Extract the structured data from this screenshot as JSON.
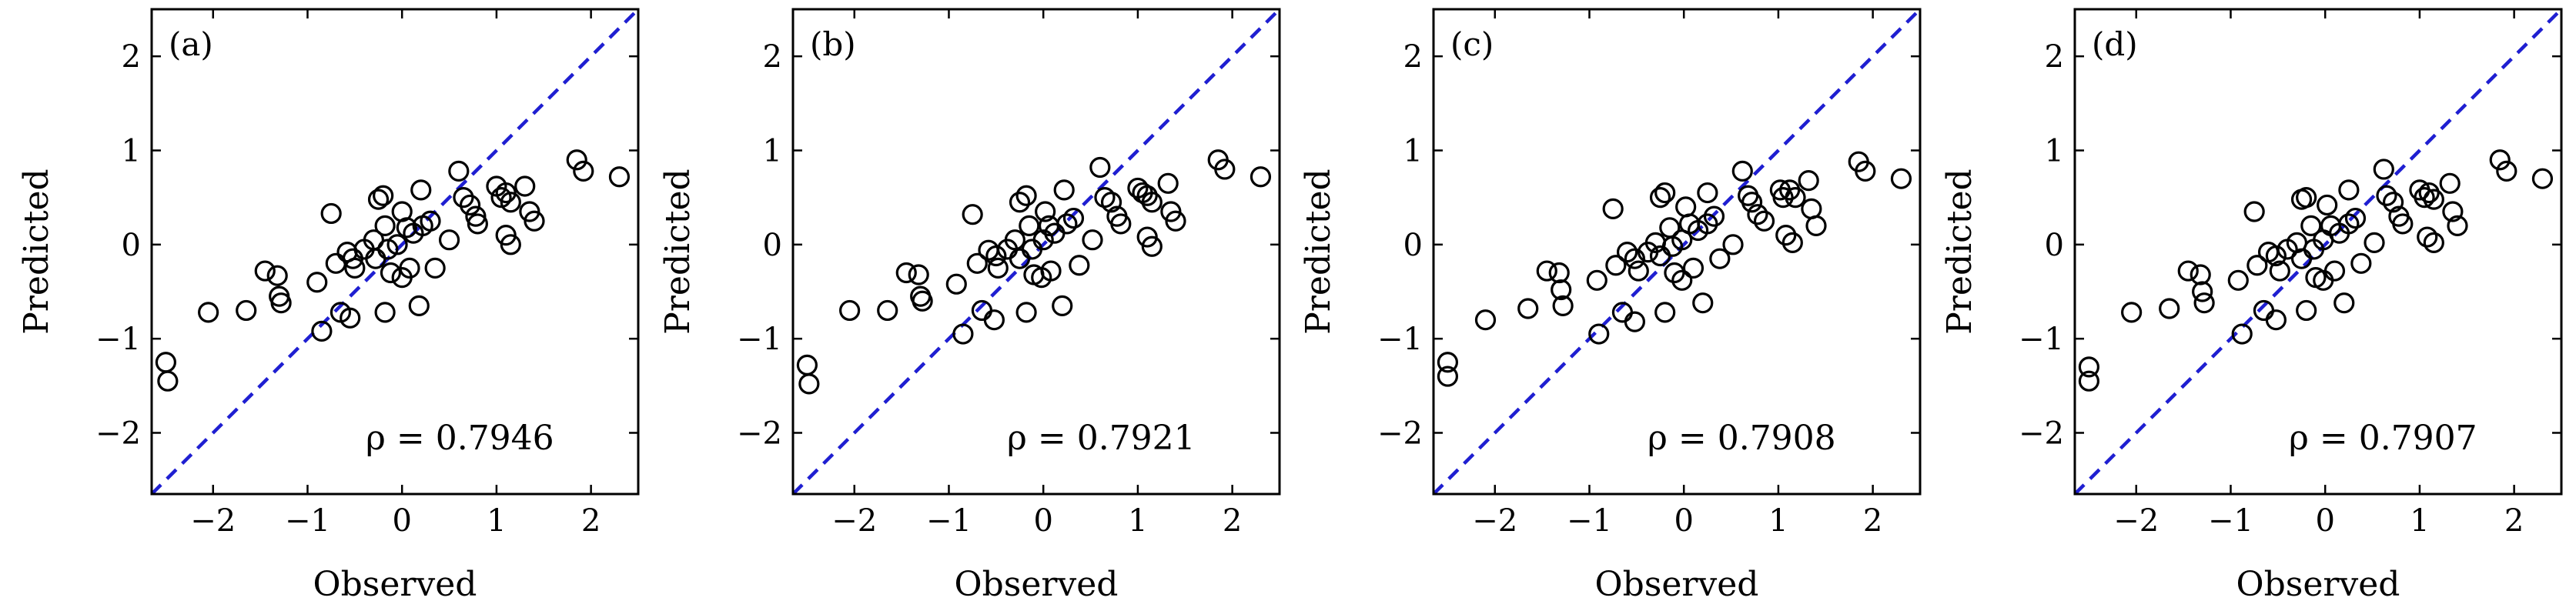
{
  "chart_data": [
    {
      "type": "scatter",
      "panel_label": "(a)",
      "annotation": "ρ = 0.7946",
      "xlabel": "Observed",
      "ylabel": "Predicted",
      "xlim": [
        -2.65,
        2.5
      ],
      "ylim": [
        -2.65,
        2.5
      ],
      "xticks": [
        -2,
        -1,
        0,
        1,
        2
      ],
      "yticks": [
        -2,
        -1,
        0,
        1,
        2
      ],
      "reference_line": "y = x (dashed, blue)",
      "colors": {
        "marker": "#000000",
        "line": "#1f1fd1"
      },
      "points": [
        {
          "x": -2.5,
          "y": -1.25
        },
        {
          "x": -2.48,
          "y": -1.45
        },
        {
          "x": -2.05,
          "y": -0.72
        },
        {
          "x": -1.65,
          "y": -0.7
        },
        {
          "x": -1.45,
          "y": -0.28
        },
        {
          "x": -1.32,
          "y": -0.33
        },
        {
          "x": -1.3,
          "y": -0.55
        },
        {
          "x": -1.28,
          "y": -0.62
        },
        {
          "x": -0.85,
          "y": -0.92
        },
        {
          "x": -0.9,
          "y": -0.4
        },
        {
          "x": -0.75,
          "y": 0.33
        },
        {
          "x": -0.65,
          "y": -0.72
        },
        {
          "x": -0.55,
          "y": -0.78
        },
        {
          "x": -0.7,
          "y": -0.2
        },
        {
          "x": -0.58,
          "y": -0.08
        },
        {
          "x": -0.52,
          "y": -0.15
        },
        {
          "x": -0.5,
          "y": -0.25
        },
        {
          "x": -0.4,
          "y": -0.05
        },
        {
          "x": -0.3,
          "y": 0.05
        },
        {
          "x": -0.28,
          "y": -0.15
        },
        {
          "x": -0.25,
          "y": 0.48
        },
        {
          "x": -0.2,
          "y": 0.52
        },
        {
          "x": -0.18,
          "y": 0.2
        },
        {
          "x": -0.15,
          "y": -0.05
        },
        {
          "x": -0.12,
          "y": -0.3
        },
        {
          "x": -0.18,
          "y": -0.72
        },
        {
          "x": -0.05,
          "y": 0.0
        },
        {
          "x": 0.0,
          "y": 0.35
        },
        {
          "x": 0.05,
          "y": 0.18
        },
        {
          "x": 0.08,
          "y": -0.25
        },
        {
          "x": 0.0,
          "y": -0.35
        },
        {
          "x": 0.12,
          "y": 0.12
        },
        {
          "x": 0.2,
          "y": 0.58
        },
        {
          "x": 0.22,
          "y": 0.2
        },
        {
          "x": 0.3,
          "y": 0.25
        },
        {
          "x": 0.35,
          "y": -0.25
        },
        {
          "x": 0.18,
          "y": -0.65
        },
        {
          "x": 0.5,
          "y": 0.05
        },
        {
          "x": 0.6,
          "y": 0.78
        },
        {
          "x": 0.65,
          "y": 0.5
        },
        {
          "x": 0.72,
          "y": 0.42
        },
        {
          "x": 0.78,
          "y": 0.3
        },
        {
          "x": 0.8,
          "y": 0.22
        },
        {
          "x": 1.0,
          "y": 0.62
        },
        {
          "x": 1.05,
          "y": 0.5
        },
        {
          "x": 1.1,
          "y": 0.55
        },
        {
          "x": 1.15,
          "y": 0.45
        },
        {
          "x": 1.1,
          "y": 0.1
        },
        {
          "x": 1.15,
          "y": 0.0
        },
        {
          "x": 1.3,
          "y": 0.62
        },
        {
          "x": 1.35,
          "y": 0.35
        },
        {
          "x": 1.4,
          "y": 0.25
        },
        {
          "x": 1.85,
          "y": 0.9
        },
        {
          "x": 1.92,
          "y": 0.78
        },
        {
          "x": 2.3,
          "y": 0.72
        }
      ]
    },
    {
      "type": "scatter",
      "panel_label": "(b)",
      "annotation": "ρ = 0.7921",
      "xlabel": "Observed",
      "ylabel": "Predicted",
      "xlim": [
        -2.65,
        2.5
      ],
      "ylim": [
        -2.65,
        2.5
      ],
      "xticks": [
        -2,
        -1,
        0,
        1,
        2
      ],
      "yticks": [
        -2,
        -1,
        0,
        1,
        2
      ],
      "reference_line": "y = x (dashed, blue)",
      "colors": {
        "marker": "#000000",
        "line": "#1f1fd1"
      },
      "points": [
        {
          "x": -2.5,
          "y": -1.28
        },
        {
          "x": -2.48,
          "y": -1.48
        },
        {
          "x": -2.05,
          "y": -0.7
        },
        {
          "x": -1.65,
          "y": -0.7
        },
        {
          "x": -1.45,
          "y": -0.3
        },
        {
          "x": -1.32,
          "y": -0.32
        },
        {
          "x": -1.3,
          "y": -0.55
        },
        {
          "x": -1.28,
          "y": -0.6
        },
        {
          "x": -0.85,
          "y": -0.95
        },
        {
          "x": -0.92,
          "y": -0.42
        },
        {
          "x": -0.75,
          "y": 0.32
        },
        {
          "x": -0.65,
          "y": -0.7
        },
        {
          "x": -0.52,
          "y": -0.8
        },
        {
          "x": -0.7,
          "y": -0.2
        },
        {
          "x": -0.58,
          "y": -0.06
        },
        {
          "x": -0.5,
          "y": -0.12
        },
        {
          "x": -0.48,
          "y": -0.25
        },
        {
          "x": -0.38,
          "y": -0.05
        },
        {
          "x": -0.3,
          "y": 0.05
        },
        {
          "x": -0.25,
          "y": -0.15
        },
        {
          "x": -0.25,
          "y": 0.45
        },
        {
          "x": -0.18,
          "y": 0.52
        },
        {
          "x": -0.15,
          "y": 0.2
        },
        {
          "x": -0.12,
          "y": -0.05
        },
        {
          "x": -0.1,
          "y": -0.32
        },
        {
          "x": -0.18,
          "y": -0.72
        },
        {
          "x": 0.0,
          "y": 0.05
        },
        {
          "x": 0.02,
          "y": 0.35
        },
        {
          "x": 0.06,
          "y": 0.2
        },
        {
          "x": 0.08,
          "y": -0.28
        },
        {
          "x": -0.02,
          "y": -0.35
        },
        {
          "x": 0.12,
          "y": 0.12
        },
        {
          "x": 0.22,
          "y": 0.58
        },
        {
          "x": 0.25,
          "y": 0.22
        },
        {
          "x": 0.32,
          "y": 0.28
        },
        {
          "x": 0.38,
          "y": -0.22
        },
        {
          "x": 0.2,
          "y": -0.65
        },
        {
          "x": 0.52,
          "y": 0.05
        },
        {
          "x": 0.6,
          "y": 0.82
        },
        {
          "x": 0.65,
          "y": 0.5
        },
        {
          "x": 0.72,
          "y": 0.45
        },
        {
          "x": 0.78,
          "y": 0.3
        },
        {
          "x": 0.82,
          "y": 0.22
        },
        {
          "x": 1.0,
          "y": 0.6
        },
        {
          "x": 1.05,
          "y": 0.55
        },
        {
          "x": 1.1,
          "y": 0.52
        },
        {
          "x": 1.15,
          "y": 0.45
        },
        {
          "x": 1.1,
          "y": 0.08
        },
        {
          "x": 1.15,
          "y": -0.02
        },
        {
          "x": 1.32,
          "y": 0.65
        },
        {
          "x": 1.35,
          "y": 0.35
        },
        {
          "x": 1.4,
          "y": 0.25
        },
        {
          "x": 1.85,
          "y": 0.9
        },
        {
          "x": 1.92,
          "y": 0.8
        },
        {
          "x": 2.3,
          "y": 0.72
        }
      ]
    },
    {
      "type": "scatter",
      "panel_label": "(c)",
      "annotation": "ρ = 0.7908",
      "xlabel": "Observed",
      "ylabel": "Predicted",
      "xlim": [
        -2.65,
        2.5
      ],
      "ylim": [
        -2.65,
        2.5
      ],
      "xticks": [
        -2,
        -1,
        0,
        1,
        2
      ],
      "yticks": [
        -2,
        -1,
        0,
        1,
        2
      ],
      "reference_line": "y = x (dashed, blue)",
      "colors": {
        "marker": "#000000",
        "line": "#1f1fd1"
      },
      "points": [
        {
          "x": -2.5,
          "y": -1.25
        },
        {
          "x": -2.5,
          "y": -1.4
        },
        {
          "x": -2.1,
          "y": -0.8
        },
        {
          "x": -1.65,
          "y": -0.68
        },
        {
          "x": -1.45,
          "y": -0.28
        },
        {
          "x": -1.32,
          "y": -0.3
        },
        {
          "x": -1.3,
          "y": -0.48
        },
        {
          "x": -1.28,
          "y": -0.65
        },
        {
          "x": -0.9,
          "y": -0.95
        },
        {
          "x": -0.92,
          "y": -0.38
        },
        {
          "x": -0.75,
          "y": 0.38
        },
        {
          "x": -0.65,
          "y": -0.72
        },
        {
          "x": -0.52,
          "y": -0.82
        },
        {
          "x": -0.72,
          "y": -0.22
        },
        {
          "x": -0.6,
          "y": -0.08
        },
        {
          "x": -0.52,
          "y": -0.15
        },
        {
          "x": -0.48,
          "y": -0.28
        },
        {
          "x": -0.38,
          "y": -0.08
        },
        {
          "x": -0.3,
          "y": 0.02
        },
        {
          "x": -0.25,
          "y": -0.12
        },
        {
          "x": -0.25,
          "y": 0.5
        },
        {
          "x": -0.2,
          "y": 0.55
        },
        {
          "x": -0.15,
          "y": 0.18
        },
        {
          "x": -0.12,
          "y": -0.02
        },
        {
          "x": -0.1,
          "y": -0.3
        },
        {
          "x": -0.2,
          "y": -0.72
        },
        {
          "x": -0.02,
          "y": 0.05
        },
        {
          "x": 0.02,
          "y": 0.4
        },
        {
          "x": 0.06,
          "y": 0.22
        },
        {
          "x": 0.1,
          "y": -0.25
        },
        {
          "x": -0.02,
          "y": -0.38
        },
        {
          "x": 0.15,
          "y": 0.15
        },
        {
          "x": 0.25,
          "y": 0.55
        },
        {
          "x": 0.25,
          "y": 0.22
        },
        {
          "x": 0.32,
          "y": 0.3
        },
        {
          "x": 0.38,
          "y": -0.15
        },
        {
          "x": 0.2,
          "y": -0.62
        },
        {
          "x": 0.52,
          "y": 0.0
        },
        {
          "x": 0.62,
          "y": 0.78
        },
        {
          "x": 0.68,
          "y": 0.52
        },
        {
          "x": 0.72,
          "y": 0.45
        },
        {
          "x": 0.78,
          "y": 0.32
        },
        {
          "x": 0.85,
          "y": 0.25
        },
        {
          "x": 1.02,
          "y": 0.58
        },
        {
          "x": 1.05,
          "y": 0.5
        },
        {
          "x": 1.12,
          "y": 0.58
        },
        {
          "x": 1.18,
          "y": 0.5
        },
        {
          "x": 1.08,
          "y": 0.1
        },
        {
          "x": 1.15,
          "y": 0.02
        },
        {
          "x": 1.32,
          "y": 0.68
        },
        {
          "x": 1.35,
          "y": 0.38
        },
        {
          "x": 1.4,
          "y": 0.2
        },
        {
          "x": 1.85,
          "y": 0.88
        },
        {
          "x": 1.92,
          "y": 0.78
        },
        {
          "x": 2.3,
          "y": 0.7
        }
      ]
    },
    {
      "type": "scatter",
      "panel_label": "(d)",
      "annotation": "ρ = 0.7907",
      "xlabel": "Observed",
      "ylabel": "Predicted",
      "xlim": [
        -2.65,
        2.5
      ],
      "ylim": [
        -2.65,
        2.5
      ],
      "xticks": [
        -2,
        -1,
        0,
        1,
        2
      ],
      "yticks": [
        -2,
        -1,
        0,
        1,
        2
      ],
      "reference_line": "y = x (dashed, blue)",
      "colors": {
        "marker": "#000000",
        "line": "#1f1fd1"
      },
      "points": [
        {
          "x": -2.5,
          "y": -1.3
        },
        {
          "x": -2.5,
          "y": -1.45
        },
        {
          "x": -2.05,
          "y": -0.72
        },
        {
          "x": -1.65,
          "y": -0.68
        },
        {
          "x": -1.45,
          "y": -0.28
        },
        {
          "x": -1.32,
          "y": -0.32
        },
        {
          "x": -1.3,
          "y": -0.5
        },
        {
          "x": -1.28,
          "y": -0.62
        },
        {
          "x": -0.88,
          "y": -0.95
        },
        {
          "x": -0.92,
          "y": -0.38
        },
        {
          "x": -0.75,
          "y": 0.35
        },
        {
          "x": -0.65,
          "y": -0.7
        },
        {
          "x": -0.52,
          "y": -0.8
        },
        {
          "x": -0.72,
          "y": -0.22
        },
        {
          "x": -0.6,
          "y": -0.08
        },
        {
          "x": -0.52,
          "y": -0.12
        },
        {
          "x": -0.48,
          "y": -0.28
        },
        {
          "x": -0.4,
          "y": -0.05
        },
        {
          "x": -0.3,
          "y": 0.02
        },
        {
          "x": -0.25,
          "y": -0.15
        },
        {
          "x": -0.25,
          "y": 0.48
        },
        {
          "x": -0.2,
          "y": 0.5
        },
        {
          "x": -0.15,
          "y": 0.2
        },
        {
          "x": -0.12,
          "y": -0.05
        },
        {
          "x": -0.1,
          "y": -0.35
        },
        {
          "x": -0.2,
          "y": -0.7
        },
        {
          "x": -0.02,
          "y": 0.05
        },
        {
          "x": 0.02,
          "y": 0.42
        },
        {
          "x": 0.06,
          "y": 0.2
        },
        {
          "x": 0.1,
          "y": -0.28
        },
        {
          "x": -0.02,
          "y": -0.38
        },
        {
          "x": 0.15,
          "y": 0.12
        },
        {
          "x": 0.25,
          "y": 0.58
        },
        {
          "x": 0.25,
          "y": 0.22
        },
        {
          "x": 0.32,
          "y": 0.28
        },
        {
          "x": 0.38,
          "y": -0.2
        },
        {
          "x": 0.2,
          "y": -0.62
        },
        {
          "x": 0.52,
          "y": 0.02
        },
        {
          "x": 0.62,
          "y": 0.8
        },
        {
          "x": 0.65,
          "y": 0.52
        },
        {
          "x": 0.72,
          "y": 0.45
        },
        {
          "x": 0.78,
          "y": 0.3
        },
        {
          "x": 0.82,
          "y": 0.22
        },
        {
          "x": 1.0,
          "y": 0.58
        },
        {
          "x": 1.05,
          "y": 0.5
        },
        {
          "x": 1.1,
          "y": 0.55
        },
        {
          "x": 1.15,
          "y": 0.48
        },
        {
          "x": 1.08,
          "y": 0.08
        },
        {
          "x": 1.15,
          "y": 0.02
        },
        {
          "x": 1.32,
          "y": 0.65
        },
        {
          "x": 1.35,
          "y": 0.35
        },
        {
          "x": 1.4,
          "y": 0.2
        },
        {
          "x": 1.85,
          "y": 0.9
        },
        {
          "x": 1.92,
          "y": 0.78
        },
        {
          "x": 2.3,
          "y": 0.7
        }
      ]
    }
  ]
}
